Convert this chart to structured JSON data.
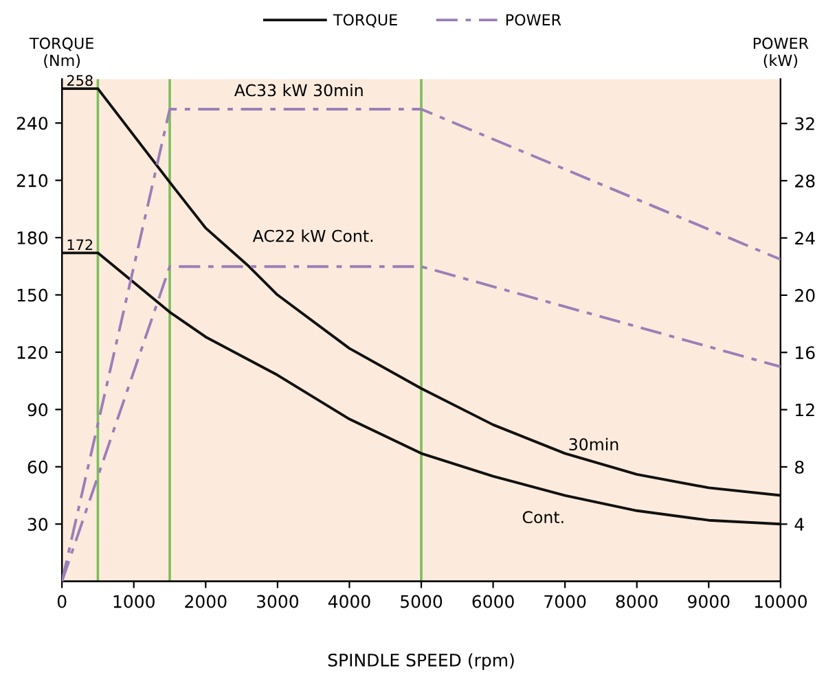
{
  "chart_data": {
    "type": "line",
    "xlabel": "SPINDLE SPEED (rpm)",
    "ylabel": "TORQUE\n(Nm)",
    "y2label": "POWER\n(kW)",
    "series": [
      {
        "name": "TORQUE",
        "color": "#111111",
        "line_style": "solid",
        "x": [
          0,
          500,
          1500,
          2000,
          2600,
          3000,
          4000,
          5000,
          6000,
          7000,
          8000,
          9000,
          10000
        ],
        "values": [
          258,
          258,
          209,
          185,
          165,
          150,
          122,
          101,
          82,
          67,
          56,
          49,
          45
        ]
      },
      {
        "color": "#111111",
        "line_style": "solid",
        "x": [
          0,
          500,
          1500,
          2000,
          2500,
          3000,
          4000,
          5000,
          6000,
          7000,
          8000,
          9000,
          10000
        ],
        "values": [
          172,
          172,
          141,
          128,
          118,
          108,
          85,
          67,
          55,
          45,
          37,
          32,
          30
        ]
      },
      {
        "name": "POWER",
        "color": "#9a7fb8",
        "line_style": "dashed",
        "axis": "y2",
        "x": [
          0,
          1500,
          5000,
          10000
        ],
        "values": [
          0,
          33,
          33,
          22.5
        ]
      },
      {
        "color": "#9a7fb8",
        "line_style": "dashed",
        "axis": "y2",
        "x": [
          0,
          1500,
          5000,
          10000
        ],
        "values": [
          0,
          22,
          22,
          15
        ]
      }
    ],
    "xlim": [
      0,
      10000
    ],
    "xticks": [
      0,
      1000,
      2000,
      3000,
      4000,
      5000,
      6000,
      7000,
      8000,
      9000,
      10000
    ],
    "ylim": [
      0,
      263
    ],
    "yticks": [
      30,
      60,
      90,
      120,
      150,
      180,
      210,
      240
    ],
    "y2lim": [
      0,
      35.1
    ],
    "y2ticks": [
      4,
      8,
      12,
      16,
      20,
      24,
      28,
      32
    ],
    "ref_lines": [
      {
        "axis": "x",
        "value": 500,
        "color": "#7cbf5a"
      },
      {
        "axis": "x",
        "value": 1500,
        "color": "#7cbf5a"
      },
      {
        "axis": "x",
        "value": 5000,
        "color": "#7cbf5a"
      }
    ],
    "annotations": [
      {
        "text": "258",
        "x": 250,
        "y": 258
      },
      {
        "text": "172",
        "x": 250,
        "y": 172
      },
      "AC33 kW 30min",
      "AC22 kW Cont.",
      "30min",
      "Cont."
    ],
    "legend": "top",
    "grid": false,
    "marker": "none"
  }
}
